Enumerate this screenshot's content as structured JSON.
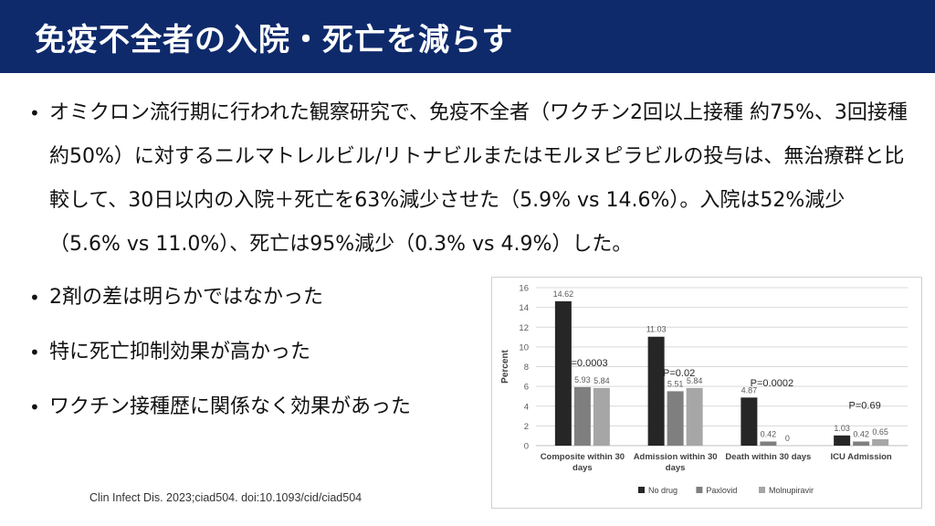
{
  "header": {
    "title": "免疫不全者の入院・死亡を減らす"
  },
  "bullets": [
    "オミクロン流行期に行われた観察研究で、免疫不全者（ワクチン2回以上接種 約75%、3回接種 約50%）に対するニルマトレルビル/リトナビルまたはモルヌピラビルの投与は、無治療群と比較して、30日以内の入院＋死亡を63%減少させた（5.9% vs 14.6%）。入院は52%減少（5.6% vs 11.0%）、死亡は95%減少（0.3% vs 4.9%）した。",
    "2剤の差は明らかではなかった",
    "特に死亡抑制効果が高かった",
    "ワクチン接種歴に関係なく効果があった"
  ],
  "citation": "Clin Infect Dis. 2023;ciad504. doi:10.1093/cid/ciad504",
  "chart_data": {
    "type": "bar",
    "ylabel": "Percent",
    "ylim": [
      0,
      16
    ],
    "yticks": [
      0,
      2,
      4,
      6,
      8,
      10,
      12,
      14,
      16
    ],
    "grid": true,
    "legend_position": "bottom",
    "categories": [
      [
        "Composite within 30",
        "days"
      ],
      [
        "Admission within 30",
        "days"
      ],
      [
        "Death within 30 days"
      ],
      [
        "ICU Admission"
      ]
    ],
    "series": [
      {
        "name": "No drug",
        "color": "#262626",
        "values": [
          14.62,
          11.03,
          4.87,
          1.03
        ],
        "labels": [
          "14.62",
          "11.03",
          "4.87",
          "1.03"
        ]
      },
      {
        "name": "Paxlovid",
        "color": "#7f7f7f",
        "values": [
          5.93,
          5.51,
          0.42,
          0.42
        ],
        "labels": [
          "5.93",
          "5.51",
          "0.42",
          "0.42"
        ]
      },
      {
        "name": "Molnupiravir",
        "color": "#a6a6a6",
        "values": [
          5.84,
          5.84,
          0,
          0.65
        ],
        "labels": [
          "5.84",
          "5.84",
          "0",
          "0.65"
        ]
      }
    ],
    "annotations": [
      "P=0.0003",
      "P=0.02",
      "P=0.0002",
      "P=0.69"
    ]
  }
}
